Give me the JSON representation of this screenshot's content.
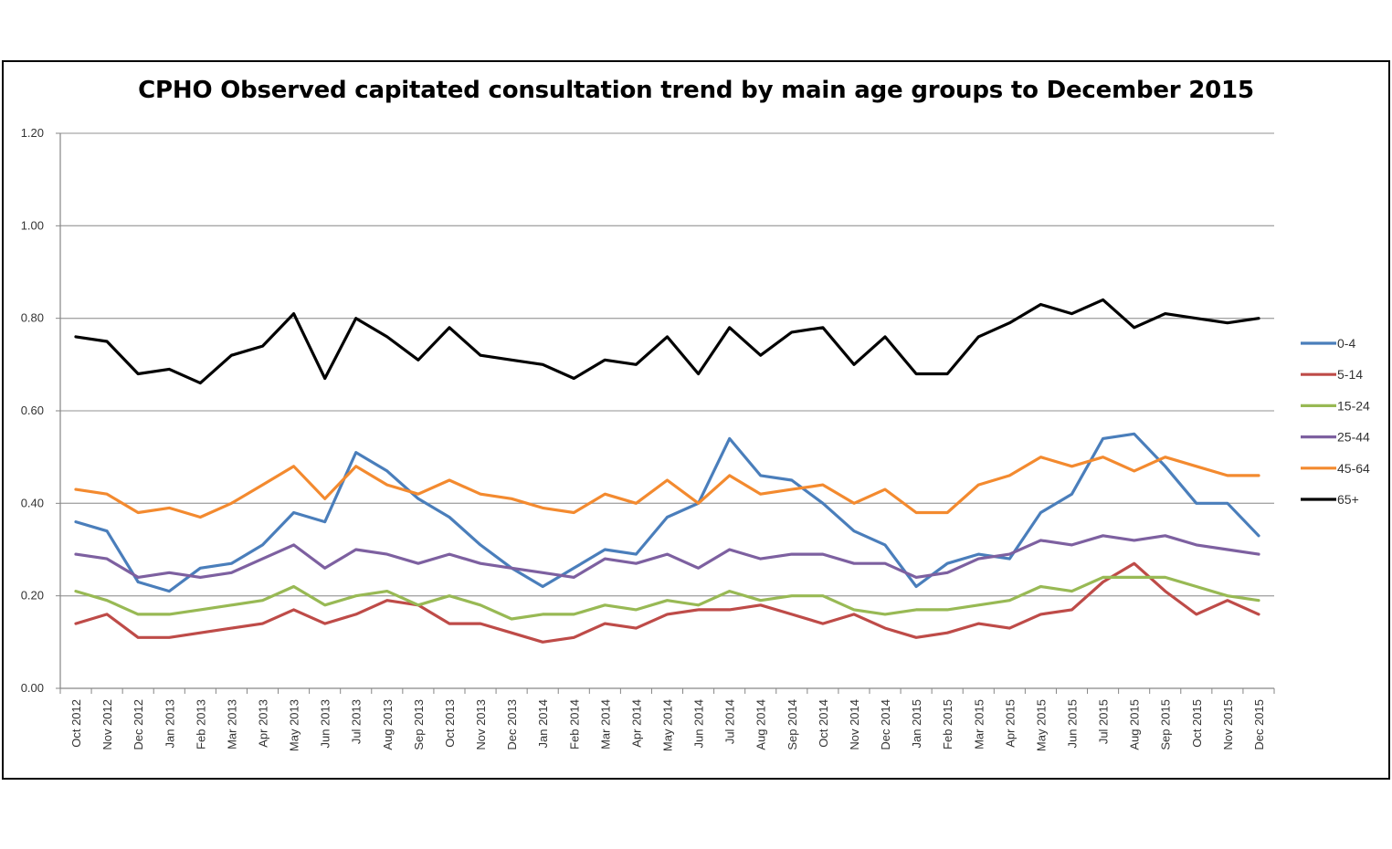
{
  "chart_data": {
    "type": "line",
    "title": "CPHO Observed capitated consultation trend by main age groups to December 2015",
    "xlabel": "",
    "ylabel": "",
    "ylim": [
      0,
      1.2
    ],
    "yticks": [
      "0.00",
      "0.20",
      "0.40",
      "0.60",
      "0.80",
      "1.00",
      "1.20"
    ],
    "grid": true,
    "legend_position": "right",
    "categories": [
      "Oct 2012",
      "Nov 2012",
      "Dec 2012",
      "Jan 2013",
      "Feb 2013",
      "Mar 2013",
      "Apr 2013",
      "May 2013",
      "Jun 2013",
      "Jul 2013",
      "Aug 2013",
      "Sep 2013",
      "Oct 2013",
      "Nov 2013",
      "Dec 2013",
      "Jan 2014",
      "Feb 2014",
      "Mar 2014",
      "Apr 2014",
      "May 2014",
      "Jun 2014",
      "Jul 2014",
      "Aug 2014",
      "Sep 2014",
      "Oct 2014",
      "Nov 2014",
      "Dec 2014",
      "Jan 2015",
      "Feb 2015",
      "Mar 2015",
      "Apr 2015",
      "May 2015",
      "Jun 2015",
      "Jul 2015",
      "Aug 2015",
      "Sep 2015",
      "Oct 2015",
      "Nov 2015",
      "Dec 2015"
    ],
    "series": [
      {
        "name": "0-4",
        "color": "#4a7ebb",
        "values": [
          0.36,
          0.34,
          0.23,
          0.21,
          0.26,
          0.27,
          0.31,
          0.38,
          0.36,
          0.51,
          0.47,
          0.41,
          0.37,
          0.31,
          0.26,
          0.22,
          0.26,
          0.3,
          0.29,
          0.37,
          0.4,
          0.54,
          0.46,
          0.45,
          0.4,
          0.34,
          0.31,
          0.22,
          0.27,
          0.29,
          0.28,
          0.38,
          0.42,
          0.54,
          0.55,
          0.48,
          0.4,
          0.4,
          0.33
        ]
      },
      {
        "name": "5-14",
        "color": "#be4b48",
        "values": [
          0.14,
          0.16,
          0.11,
          0.11,
          0.12,
          0.13,
          0.14,
          0.17,
          0.14,
          0.16,
          0.19,
          0.18,
          0.14,
          0.14,
          0.12,
          0.1,
          0.11,
          0.14,
          0.13,
          0.16,
          0.17,
          0.17,
          0.18,
          0.16,
          0.14,
          0.16,
          0.13,
          0.11,
          0.12,
          0.14,
          0.13,
          0.16,
          0.17,
          0.23,
          0.27,
          0.21,
          0.16,
          0.19,
          0.16
        ]
      },
      {
        "name": "15-24",
        "color": "#98b954",
        "values": [
          0.21,
          0.19,
          0.16,
          0.16,
          0.17,
          0.18,
          0.19,
          0.22,
          0.18,
          0.2,
          0.21,
          0.18,
          0.2,
          0.18,
          0.15,
          0.16,
          0.16,
          0.18,
          0.17,
          0.19,
          0.18,
          0.21,
          0.19,
          0.2,
          0.2,
          0.17,
          0.16,
          0.17,
          0.17,
          0.18,
          0.19,
          0.22,
          0.21,
          0.24,
          0.24,
          0.24,
          0.22,
          0.2,
          0.19
        ]
      },
      {
        "name": "25-44",
        "color": "#7d60a0",
        "values": [
          0.29,
          0.28,
          0.24,
          0.25,
          0.24,
          0.25,
          0.28,
          0.31,
          0.26,
          0.3,
          0.29,
          0.27,
          0.29,
          0.27,
          0.26,
          0.25,
          0.24,
          0.28,
          0.27,
          0.29,
          0.26,
          0.3,
          0.28,
          0.29,
          0.29,
          0.27,
          0.27,
          0.24,
          0.25,
          0.28,
          0.29,
          0.32,
          0.31,
          0.33,
          0.32,
          0.33,
          0.31,
          0.3,
          0.29
        ]
      },
      {
        "name": "45-64",
        "color": "#f38a2f",
        "values": [
          0.43,
          0.42,
          0.38,
          0.39,
          0.37,
          0.4,
          0.44,
          0.48,
          0.41,
          0.48,
          0.44,
          0.42,
          0.45,
          0.42,
          0.41,
          0.39,
          0.38,
          0.42,
          0.4,
          0.45,
          0.4,
          0.46,
          0.42,
          0.43,
          0.44,
          0.4,
          0.43,
          0.38,
          0.38,
          0.44,
          0.46,
          0.5,
          0.48,
          0.5,
          0.47,
          0.5,
          0.48,
          0.46,
          0.46
        ]
      },
      {
        "name": "65+",
        "color": "#000000",
        "values": [
          0.76,
          0.75,
          0.68,
          0.69,
          0.66,
          0.72,
          0.74,
          0.81,
          0.67,
          0.8,
          0.76,
          0.71,
          0.78,
          0.72,
          0.71,
          0.7,
          0.67,
          0.71,
          0.7,
          0.76,
          0.68,
          0.78,
          0.72,
          0.77,
          0.78,
          0.7,
          0.76,
          0.68,
          0.68,
          0.76,
          0.79,
          0.83,
          0.81,
          0.84,
          0.78,
          0.81,
          0.8,
          0.79,
          0.8
        ]
      }
    ]
  }
}
